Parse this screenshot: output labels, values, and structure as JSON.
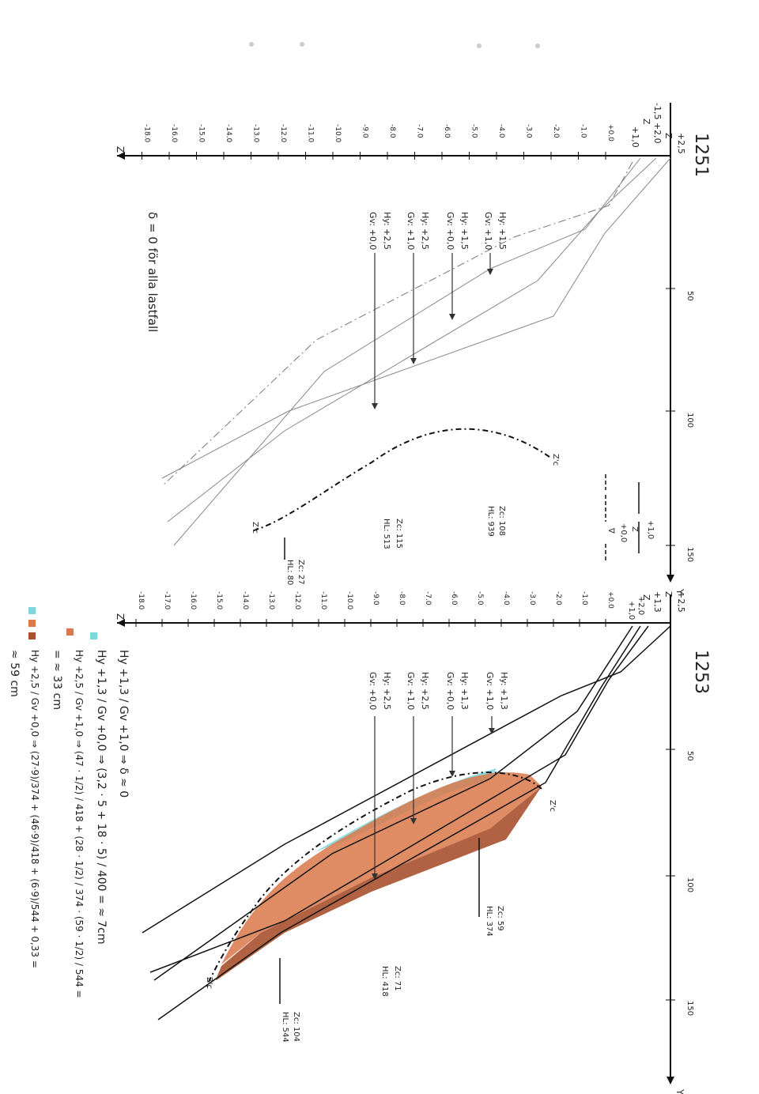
{
  "sections": {
    "upper": {
      "id": "1251",
      "top_labels": [
        "+2,5",
        "Z",
        "-1,5  +2,0",
        "Z",
        "+1,0"
      ],
      "depth_ticks": [
        "+0.0",
        "-1.0",
        "-2.0",
        "-3.0",
        "-4.0",
        "-5.0",
        "-6.0",
        "-7.0",
        "-8.0",
        "-9.0",
        "-10.0",
        "-11.0",
        "-12.0",
        "-13.0",
        "-14.0",
        "-15.0",
        "-16.0",
        "-18.0"
      ],
      "dist_ticks": [
        "50",
        "100",
        "150"
      ],
      "z_label": "Z",
      "y_label": "Y",
      "note": "δ = 0   för alla lastfall",
      "cases": [
        {
          "line1": "Hy: +1,5",
          "line2": "Gv: +1,0"
        },
        {
          "line1": "Hy: +1,5",
          "line2": "Gv: +0,0"
        },
        {
          "line1": "Hy: +2,5",
          "line2": "Gv: +1,0"
        },
        {
          "line1": "Hy: +2,5",
          "line2": "Gv: +0,0"
        }
      ],
      "legend": [
        "+1,0",
        "Z",
        "+0,0",
        "∇"
      ],
      "results": [
        {
          "zc": "Zc: 108",
          "hl": "HL: 939"
        },
        {
          "zc": "Zc: 115",
          "hl": "HL: 513"
        },
        {
          "zc": "Zc: 27",
          "hl": "HL: 80"
        }
      ],
      "curve_labels": [
        "Z'c",
        "Z'c"
      ]
    },
    "lower": {
      "id": "1253",
      "top_labels": [
        "+2,5",
        "Z",
        "+1,3",
        "Z",
        "+2,0",
        "+1,0"
      ],
      "depth_ticks": [
        "+0.0",
        "-1.0",
        "-2.0",
        "-3.0",
        "-4.0",
        "-5.0",
        "-6.0",
        "-7.0",
        "-8.0",
        "-9.0",
        "-10.0",
        "-11.0",
        "-12.0",
        "-13.0",
        "-14.0",
        "-15.0",
        "-16.0",
        "-17.0",
        "-18.0"
      ],
      "dist_ticks": [
        "50",
        "100",
        "150"
      ],
      "z_label": "Z",
      "y_label": "Y",
      "cases": [
        {
          "line1": "Hy: +1,3",
          "line2": "Gv: +1,0"
        },
        {
          "line1": "Hy: +1,3",
          "line2": "Gv: +0,0"
        },
        {
          "line1": "Hy: +2,5",
          "line2": "Gv: +1,0"
        },
        {
          "line1": "Hy: +2,5",
          "line2": "Gv: +0,0"
        }
      ],
      "results": [
        {
          "zc": "Zc: 59",
          "hl": "HL: 374"
        },
        {
          "zc": "Zc: 71",
          "hl": "HL: 418"
        },
        {
          "zc": "Zc: 104",
          "hl": "HL: 544"
        }
      ],
      "curve_labels": [
        "Z'c",
        "Z'c"
      ]
    }
  },
  "calculations": {
    "line1": "Hy +1,3 / Gv +1,0 ⇒ δ ≈ 0",
    "line2": "Hy +1,3 / Gv +0,0 ⇒ (3,2 · 5 + 18 · 5) / 400 = ≈ 7cm",
    "line3": "Hy +2,5 / Gv +1,0 ⇒ (47 · 1/2) / 418 + (28 · 1/2) / 374 · (59 · 1/2) / 544 =",
    "line4": "= ≈ 33 cm",
    "line5": "Hy +2,5 / Gv +0,0 ⇒ (27·9)/374 + (46·9)/418 + (6·9)/544 + 0,33 =",
    "line6": "≈ 59 cm"
  },
  "colors": {
    "ink": "#111111",
    "blue_fill": "#7fd6dc",
    "orange_fill": "#d9784a",
    "brown_fill": "#a9512e",
    "pencil": "#8a8a8a"
  }
}
